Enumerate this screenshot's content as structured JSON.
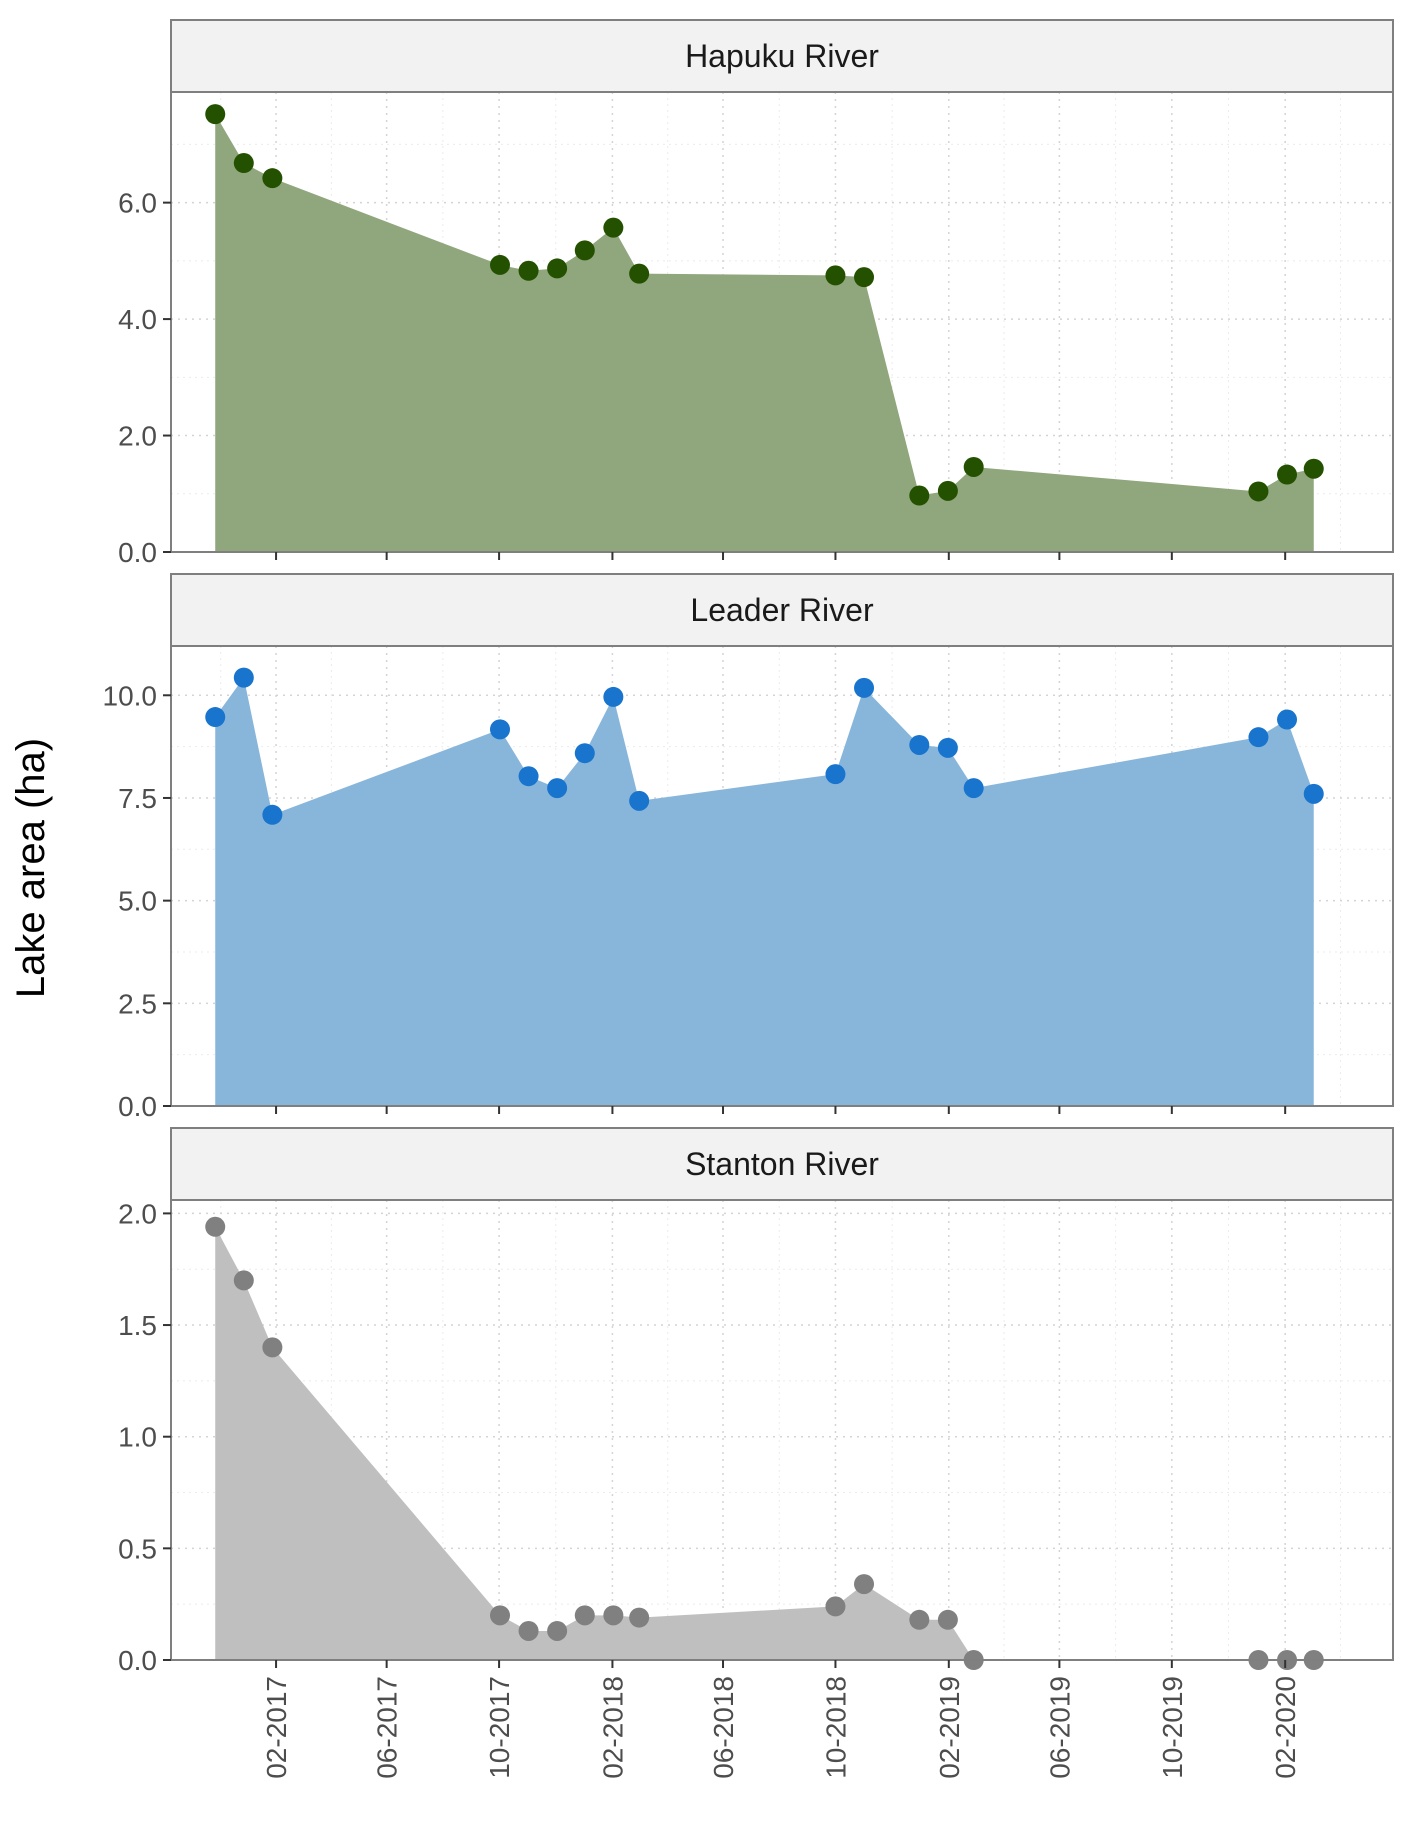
{
  "chart_data": {
    "type": "area",
    "ylabel": "Lake area (ha)",
    "xlabel": "",
    "x_tick_labels": [
      "02-2017",
      "06-2017",
      "10-2017",
      "02-2018",
      "06-2018",
      "10-2018",
      "02-2019",
      "06-2019",
      "10-2019",
      "02-2020"
    ],
    "x_ticks": [
      "2017-02-01",
      "2017-06-01",
      "2017-10-01",
      "2018-02-01",
      "2018-06-01",
      "2018-10-01",
      "2019-02-01",
      "2019-06-01",
      "2019-10-01",
      "2020-02-01"
    ],
    "xlim": [
      "2016-10-10",
      "2020-05-28"
    ],
    "grid": true,
    "dates": [
      "2016-11-27",
      "2016-12-28",
      "2017-01-28",
      "2017-10-02",
      "2017-11-02",
      "2017-12-03",
      "2018-01-02",
      "2018-02-02",
      "2018-03-02",
      "2018-10-01",
      "2018-11-01",
      "2018-12-31",
      "2019-01-31",
      "2019-02-28",
      "2020-01-03",
      "2020-02-03",
      "2020-03-03"
    ],
    "panels": [
      {
        "name": "Hapuku River",
        "color": "#235100",
        "fill": "#90a67c",
        "ylim": [
          0,
          7.9
        ],
        "yticks": [
          "0.0",
          "2.0",
          "4.0",
          "6.0"
        ],
        "ytick_values": [
          0,
          2,
          4,
          6
        ],
        "values": [
          7.52,
          6.68,
          6.42,
          4.93,
          4.83,
          4.87,
          5.18,
          5.57,
          4.78,
          4.75,
          4.72,
          0.97,
          1.05,
          1.46,
          1.04,
          1.33,
          1.43
        ]
      },
      {
        "name": "Leader River",
        "color": "#1874cd",
        "fill": "#88b6db",
        "ylim": [
          0,
          11.2
        ],
        "yticks": [
          "0.0",
          "2.5",
          "5.0",
          "7.5",
          "10.0"
        ],
        "ytick_values": [
          0,
          2.5,
          5,
          7.5,
          10
        ],
        "values": [
          9.47,
          10.43,
          7.09,
          9.17,
          8.03,
          7.74,
          8.59,
          9.96,
          7.43,
          8.08,
          10.18,
          8.79,
          8.72,
          7.74,
          8.98,
          9.41,
          7.6
        ]
      },
      {
        "name": "Stanton River",
        "color": "#808080",
        "fill": "#bfbfbf",
        "ylim": [
          0,
          2.06
        ],
        "yticks": [
          "0.0",
          "0.5",
          "1.0",
          "1.5",
          "2.0"
        ],
        "ytick_values": [
          0,
          0.5,
          1,
          1.5,
          2
        ],
        "values": [
          1.94,
          1.7,
          1.4,
          0.2,
          0.13,
          0.13,
          0.2,
          0.2,
          0.19,
          0.24,
          0.34,
          0.18,
          0.18,
          0,
          null,
          null,
          null
        ],
        "zero_points": [
          0,
          0,
          0
        ]
      }
    ]
  }
}
